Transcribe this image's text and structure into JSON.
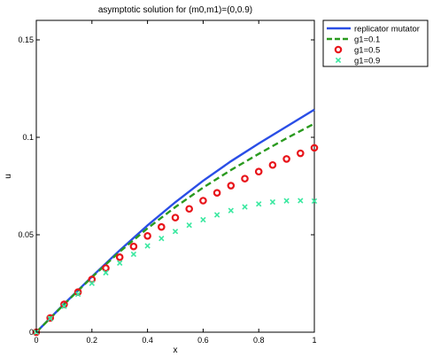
{
  "chart_data": {
    "type": "line",
    "title": "asymptotic solution for (m0,m1)=(0,0.9)",
    "xlabel": "x",
    "ylabel": "u",
    "xlim": [
      0,
      1
    ],
    "ylim": [
      0,
      0.16
    ],
    "xticks": [
      0,
      0.2,
      0.4,
      0.6,
      0.8,
      1
    ],
    "xtick_labels": [
      "0",
      "0.2",
      "0.4",
      "0.6",
      "0.8",
      "1"
    ],
    "yticks": [
      0,
      0.05,
      0.1,
      0.15
    ],
    "ytick_labels": [
      "0",
      "0.05",
      "0.1",
      "0.15"
    ],
    "grid": false,
    "legend_position": "outside-top-right",
    "series": [
      {
        "name": "replicator mutator",
        "style": "solid",
        "color": "#2a4ee6",
        "x": [
          0,
          0.1,
          0.2,
          0.3,
          0.4,
          0.5,
          0.6,
          0.7,
          0.8,
          0.9,
          1.0
        ],
        "y": [
          0,
          0.0145,
          0.0285,
          0.042,
          0.0548,
          0.0667,
          0.0777,
          0.0877,
          0.0968,
          0.1055,
          0.1142
        ]
      },
      {
        "name": "g1=0.1",
        "style": "dashed",
        "color": "#2a9a1f",
        "x": [
          0,
          0.1,
          0.2,
          0.3,
          0.4,
          0.5,
          0.6,
          0.7,
          0.8,
          0.9,
          1.0
        ],
        "y": [
          0,
          0.0143,
          0.0282,
          0.0413,
          0.0533,
          0.0642,
          0.0742,
          0.0832,
          0.0915,
          0.0995,
          0.107
        ]
      },
      {
        "name": "g1=0.5",
        "style": "marker-circle",
        "color": "#e8141a",
        "x": [
          0,
          0.05,
          0.1,
          0.15,
          0.2,
          0.25,
          0.3,
          0.35,
          0.4,
          0.45,
          0.5,
          0.55,
          0.6,
          0.65,
          0.7,
          0.75,
          0.8,
          0.85,
          0.9,
          0.95,
          1.0
        ],
        "y": [
          0,
          0.0073,
          0.0143,
          0.0206,
          0.0271,
          0.0329,
          0.0385,
          0.044,
          0.0494,
          0.054,
          0.0588,
          0.0633,
          0.0675,
          0.0715,
          0.0752,
          0.0788,
          0.0824,
          0.0858,
          0.0889,
          0.0918,
          0.0946
        ]
      },
      {
        "name": "g1=0.9",
        "style": "marker-x",
        "color": "#3ae8a0",
        "x": [
          0,
          0.05,
          0.1,
          0.15,
          0.2,
          0.25,
          0.3,
          0.35,
          0.4,
          0.45,
          0.5,
          0.55,
          0.6,
          0.65,
          0.7,
          0.75,
          0.8,
          0.85,
          0.9,
          0.95,
          1.0
        ],
        "y": [
          0,
          0.007,
          0.0133,
          0.0195,
          0.0251,
          0.0305,
          0.0355,
          0.04,
          0.0443,
          0.0481,
          0.0517,
          0.0549,
          0.0577,
          0.0602,
          0.0624,
          0.0643,
          0.0658,
          0.0668,
          0.0674,
          0.0675,
          0.0673
        ]
      }
    ]
  }
}
